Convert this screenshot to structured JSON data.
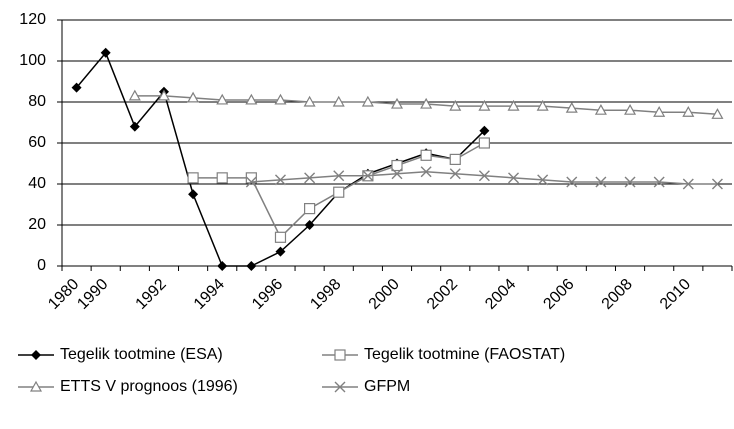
{
  "chart_data": {
    "type": "line",
    "categories": [
      "1980",
      "1990",
      null,
      "1992",
      null,
      "1994",
      null,
      "1996",
      null,
      "1998",
      null,
      "2000",
      null,
      "2002",
      null,
      "2004",
      null,
      "2006",
      null,
      "2008",
      null,
      "2010",
      null
    ],
    "series": [
      {
        "name": "Tegelik tootmine (ESA)",
        "color": "#000000",
        "marker": "diamond",
        "values": [
          87,
          104,
          68,
          85,
          35,
          0,
          0,
          7,
          20,
          36,
          45,
          50,
          55,
          52,
          66,
          null,
          null,
          null,
          null,
          null,
          null,
          null,
          null
        ]
      },
      {
        "name": "Tegelik tootmine (FAOSTAT)",
        "color": "#808080",
        "marker": "square",
        "values": [
          null,
          null,
          null,
          null,
          43,
          43,
          43,
          14,
          28,
          36,
          44,
          49,
          54,
          52,
          60,
          null,
          null,
          null,
          null,
          null,
          null,
          null,
          null
        ]
      },
      {
        "name": "ETTS V prognoos (1996)",
        "color": "#808080",
        "marker": "triangle",
        "values": [
          null,
          null,
          83,
          83,
          82,
          81,
          81,
          81,
          80,
          80,
          80,
          79,
          79,
          78,
          78,
          78,
          78,
          77,
          76,
          76,
          75,
          75,
          74
        ]
      },
      {
        "name": "GFPM",
        "color": "#808080",
        "marker": "x",
        "values": [
          null,
          null,
          null,
          null,
          null,
          null,
          41,
          42,
          43,
          44,
          44,
          45,
          46,
          45,
          44,
          43,
          42,
          41,
          41,
          41,
          41,
          40,
          40
        ]
      }
    ],
    "ylim": [
      0,
      120
    ],
    "yticks": [
      0,
      20,
      40,
      60,
      80,
      100,
      120
    ],
    "grid": true
  }
}
